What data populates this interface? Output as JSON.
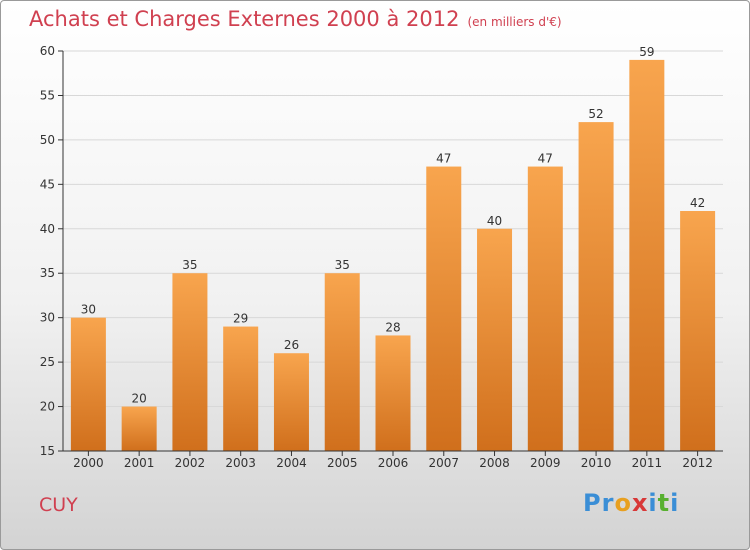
{
  "title": "Achats et Charges Externes 2000 à 2012",
  "unit": "(en milliers d'€)",
  "town": "CUY",
  "logo": {
    "text": "Proxiti",
    "letters": [
      {
        "char": "P",
        "color": "#3a8ed6"
      },
      {
        "char": "r",
        "color": "#3a8ed6"
      },
      {
        "char": "o",
        "color": "#e8a020"
      },
      {
        "char": "x",
        "color": "#d83838"
      },
      {
        "char": "i",
        "color": "#3a8ed6"
      },
      {
        "char": "t",
        "color": "#58b030"
      },
      {
        "char": "i",
        "color": "#3a8ed6"
      }
    ]
  },
  "colors": {
    "bar_top": "#f8a54e",
    "bar_bottom": "#d06f1c",
    "title": "#d04050",
    "axis": "#333333",
    "grid": "#d8d8d8"
  },
  "chart_data": {
    "type": "bar",
    "title": "Achats et Charges Externes 2000 à 2012",
    "subtitle": "(en milliers d'€)",
    "xlabel": "",
    "ylabel": "",
    "categories": [
      "2000",
      "2001",
      "2002",
      "2003",
      "2004",
      "2005",
      "2006",
      "2007",
      "2008",
      "2009",
      "2010",
      "2011",
      "2012"
    ],
    "values": [
      30,
      20,
      35,
      29,
      26,
      35,
      28,
      47,
      40,
      47,
      52,
      59,
      42
    ],
    "ylim": [
      15,
      60
    ],
    "yticks": [
      15,
      20,
      25,
      30,
      35,
      40,
      45,
      50,
      55,
      60
    ],
    "grid": true
  }
}
